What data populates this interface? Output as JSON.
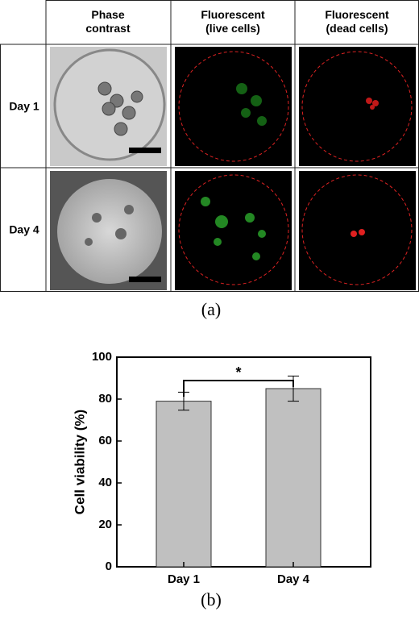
{
  "figure_a": {
    "columns": [
      "Phase\ncontrast",
      "Fluorescent\n(live cells)",
      "Fluorescent\n(dead cells)"
    ],
    "rows": [
      "Day 1",
      "Day 4"
    ],
    "label": "(a)"
  },
  "chart_data": {
    "type": "bar",
    "categories": [
      "Day 1",
      "Day 4"
    ],
    "values": [
      79,
      85
    ],
    "errors": [
      4.3,
      6
    ],
    "color": "#c0c0c0",
    "ylabel": "Cell viability (%)",
    "ylim": [
      0,
      100
    ],
    "yticks": [
      0,
      20,
      40,
      60,
      80,
      100
    ],
    "annotation": "*",
    "label": "(b)"
  }
}
